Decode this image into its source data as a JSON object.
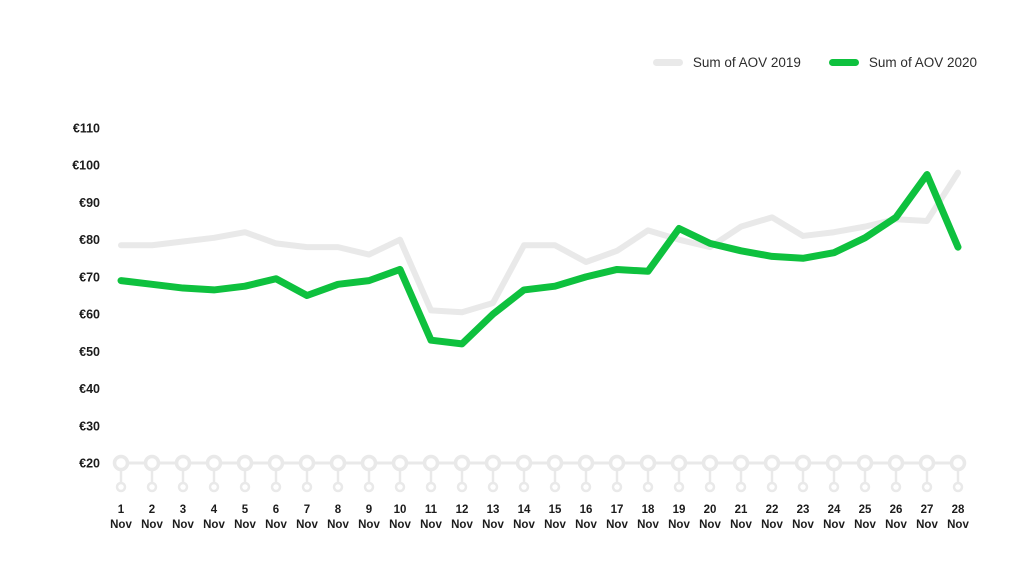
{
  "page": {
    "background": "#ffffff"
  },
  "legend": {
    "position": "top-right",
    "items": [
      {
        "label": "Sum of AOV 2019",
        "color": "#e9e9e9"
      },
      {
        "label": "Sum of AOV 2020",
        "color": "#0ec13e"
      }
    ]
  },
  "axis_style": {
    "axis_color": "#e9e9e9",
    "label_color": "#1c1c1c"
  },
  "chart_data": {
    "type": "line",
    "title": "",
    "xlabel": "",
    "ylabel": "",
    "ylabel_prefix": "€",
    "ylim": [
      20,
      110
    ],
    "y_ticks": [
      110,
      100,
      90,
      80,
      70,
      60,
      50,
      40,
      30,
      20
    ],
    "grid": false,
    "legend_position": "top-right",
    "x": [
      "1 Nov",
      "2 Nov",
      "3 Nov",
      "4 Nov",
      "5 Nov",
      "6 Nov",
      "7 Nov",
      "8 Nov",
      "9 Nov",
      "10 Nov",
      "11 Nov",
      "12 Nov",
      "13 Nov",
      "14 Nov",
      "15 Nov",
      "16 Nov",
      "17 Nov",
      "18 Nov",
      "19 Nov",
      "20 Nov",
      "21 Nov",
      "22 Nov",
      "23 Nov",
      "24 Nov",
      "25 Nov",
      "26 Nov",
      "27 Nov",
      "28 Nov"
    ],
    "series": [
      {
        "name": "Sum of AOV 2019",
        "color": "#e9e9e9",
        "values": [
          78.5,
          78.5,
          79.5,
          80.5,
          82,
          79,
          78,
          78,
          76,
          80,
          61,
          60.5,
          63,
          78.5,
          78.5,
          74,
          77,
          82.5,
          80,
          78,
          83.5,
          86,
          81,
          82,
          83.5,
          85.5,
          85,
          98
        ]
      },
      {
        "name": "Sum of AOV 2020",
        "color": "#0ec13e",
        "values": [
          69,
          68,
          67,
          66.5,
          67.5,
          69.5,
          65,
          68,
          69,
          72,
          53,
          52,
          60,
          66.5,
          67.5,
          70,
          72,
          71.5,
          83,
          79,
          77,
          75.5,
          75,
          76.5,
          80.5,
          86,
          97.5,
          78
        ]
      }
    ]
  }
}
